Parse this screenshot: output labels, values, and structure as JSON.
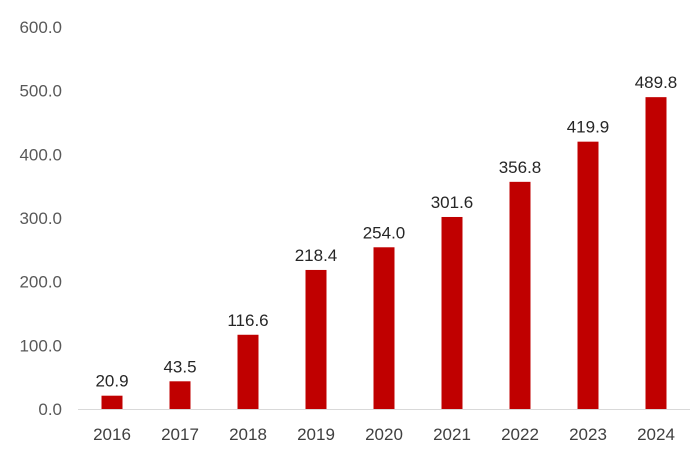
{
  "chart_data": {
    "type": "bar",
    "title": "",
    "xlabel": "",
    "ylabel": "",
    "categories": [
      "2016",
      "2017",
      "2018",
      "2019",
      "2020",
      "2021",
      "2022",
      "2023",
      "2024"
    ],
    "values": [
      20.9,
      43.5,
      116.6,
      218.4,
      254.0,
      301.6,
      356.8,
      419.9,
      489.8
    ],
    "value_labels": [
      "20.9",
      "43.5",
      "116.6",
      "218.4",
      "254.0",
      "301.6",
      "356.8",
      "419.9",
      "489.8"
    ],
    "ylim": [
      0,
      600
    ],
    "yticks": [
      0,
      100,
      200,
      300,
      400,
      500,
      600
    ],
    "ytick_labels": [
      "0.0",
      "100.0",
      "200.0",
      "300.0",
      "400.0",
      "500.0",
      "600.0"
    ],
    "grid": false,
    "legend": "none",
    "bar_color": "#c00000"
  }
}
